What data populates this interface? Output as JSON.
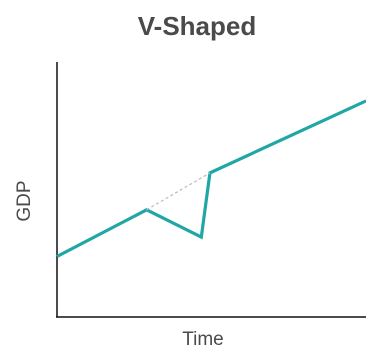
{
  "chart_data": {
    "type": "line",
    "title": "V-Shaped",
    "xlabel": "Time",
    "ylabel": "GDP",
    "series": [
      {
        "role": "actual",
        "color": "#21A6A6",
        "style": "solid",
        "points": [
          {
            "x": 0,
            "y": 0.0
          },
          {
            "x": 0.29,
            "y": 0.216
          },
          {
            "x": 0.467,
            "y": 0.09
          },
          {
            "x": 0.495,
            "y": 0.387
          },
          {
            "x": 1,
            "y": 0.72
          }
        ]
      },
      {
        "role": "trend",
        "color": "#BBBBBB",
        "style": "dashed",
        "points": [
          {
            "x": 0.29,
            "y": 0.216
          },
          {
            "x": 0.495,
            "y": 0.387
          }
        ]
      }
    ],
    "xlim": [
      0,
      1
    ],
    "ylim": [
      -0.28,
      0.9
    ],
    "xticks": [],
    "yticks": [],
    "grid": false,
    "legend": "none"
  }
}
